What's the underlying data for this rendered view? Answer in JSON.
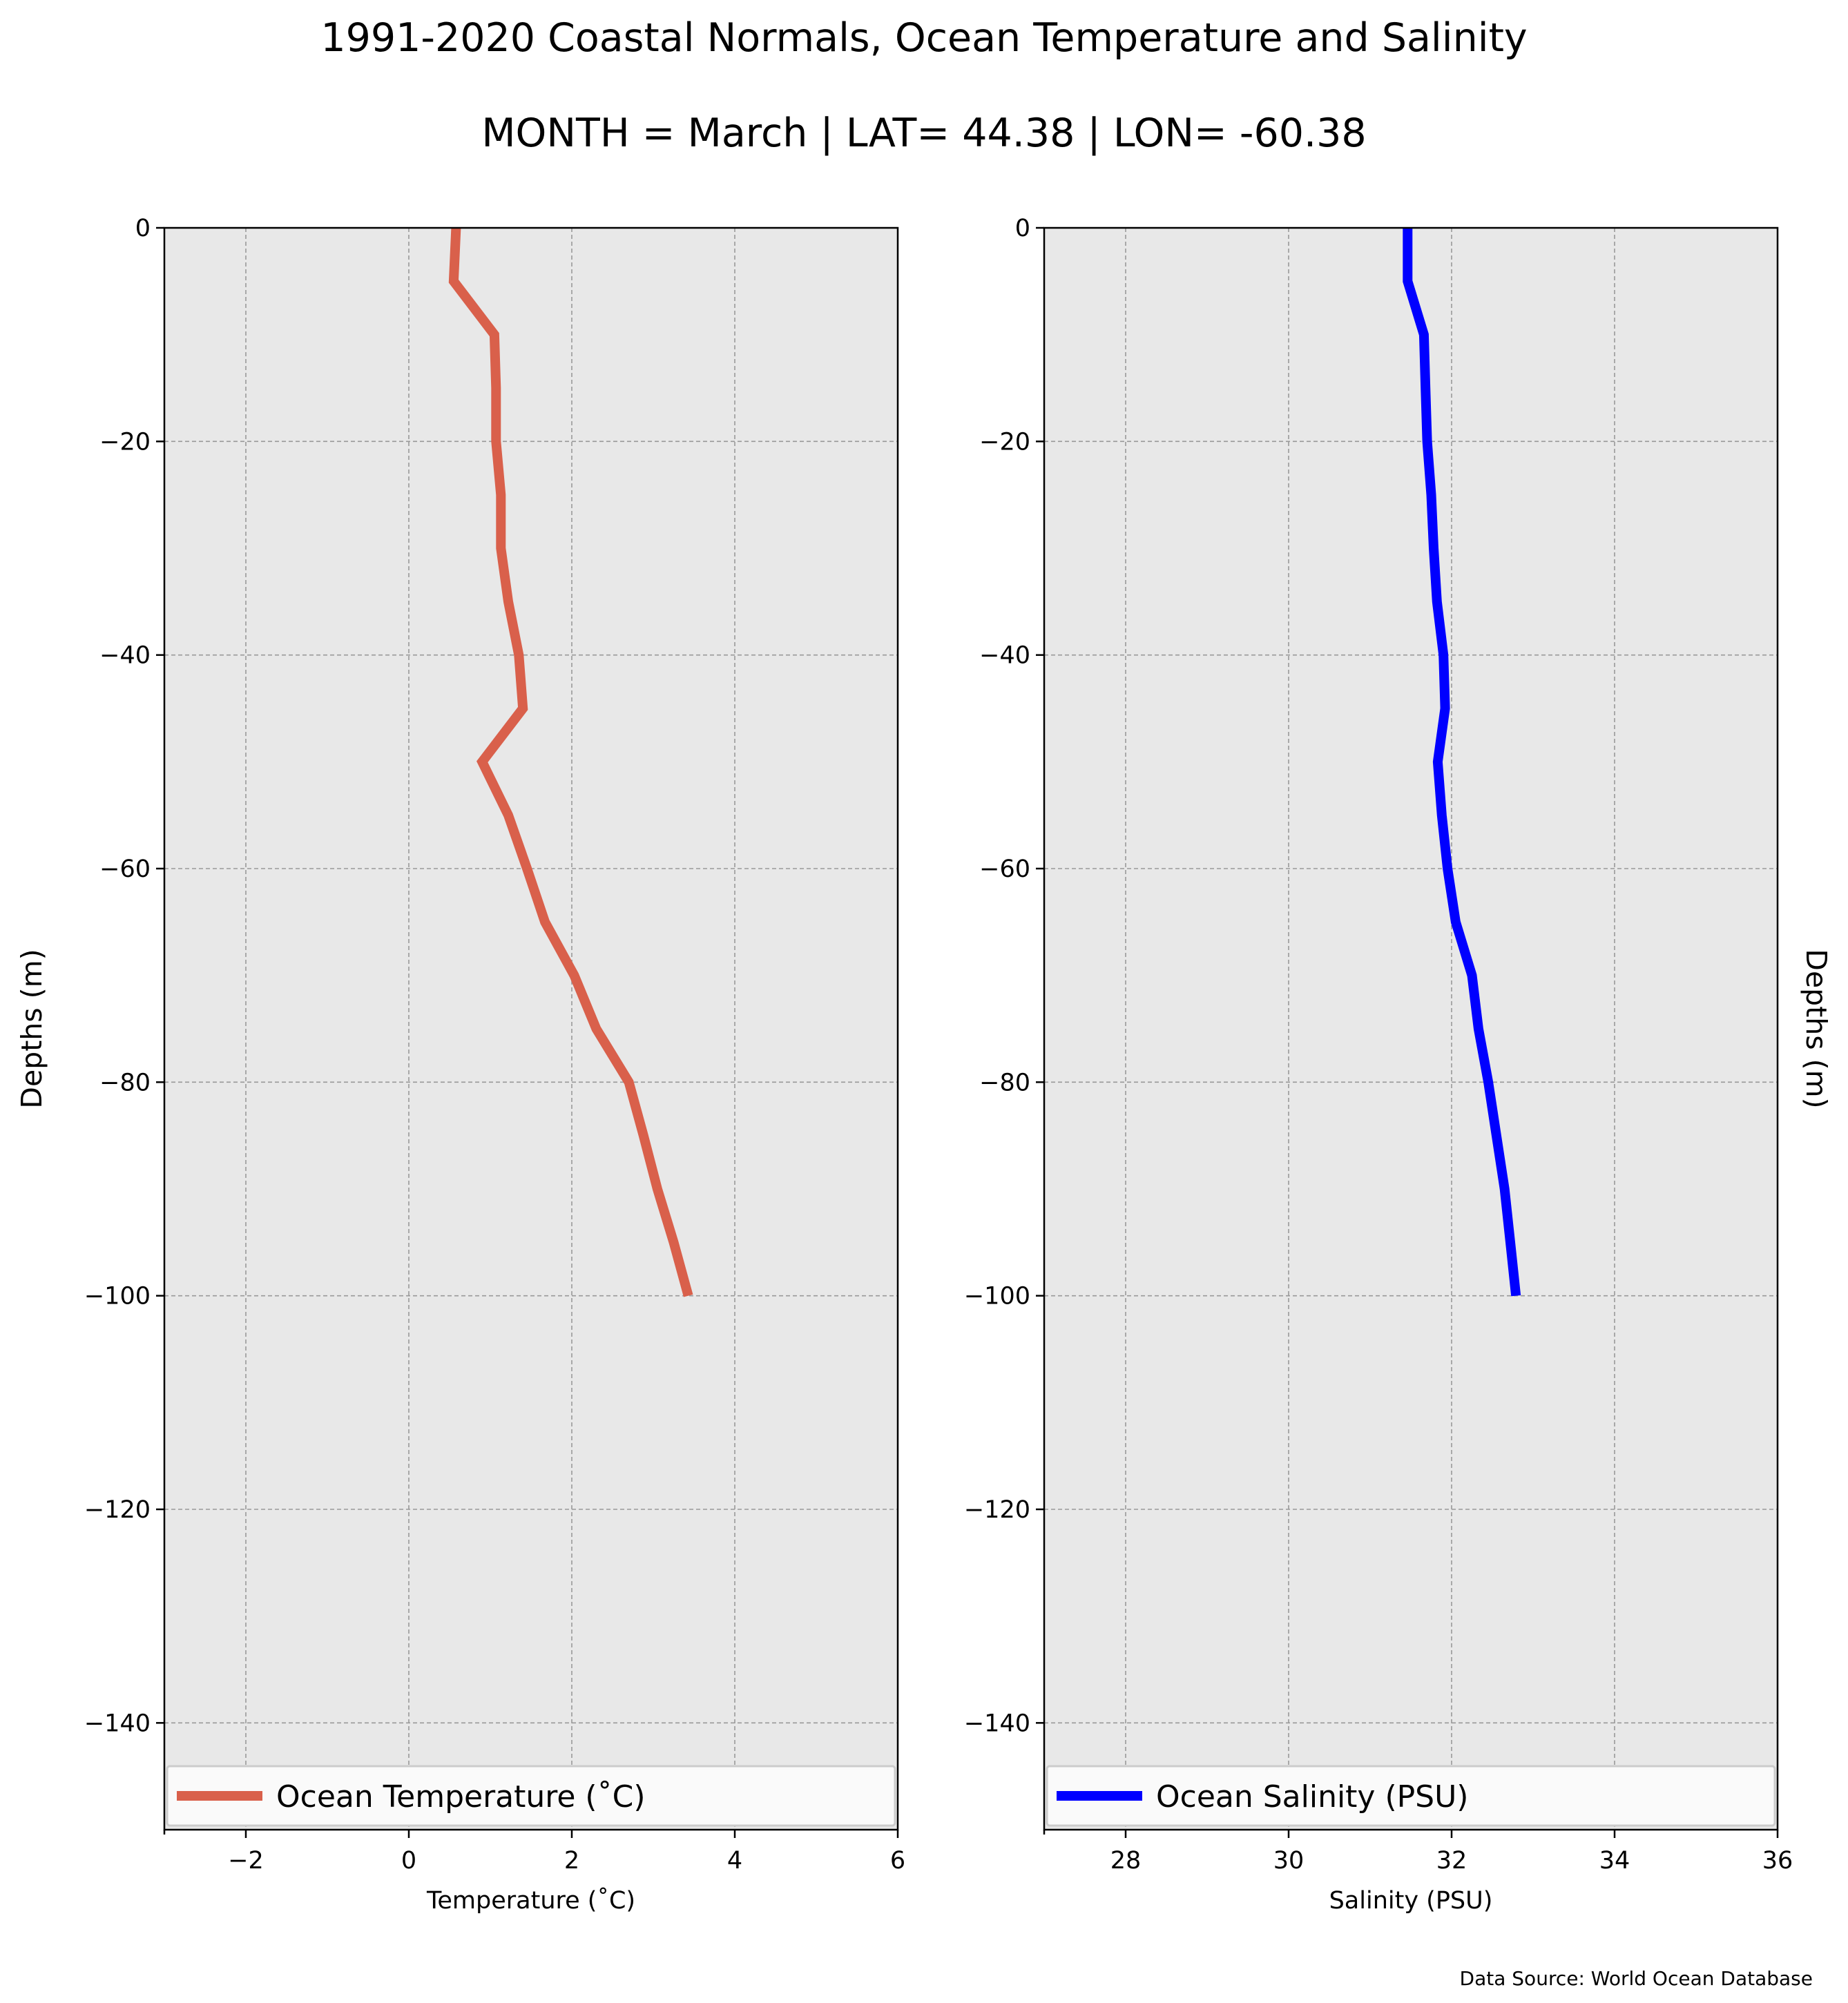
{
  "figure": {
    "title_line1": "1991-2020 Coastal Normals, Ocean Temperature and Salinity",
    "title_line2": "MONTH = March | LAT= 44.38 | LON= -60.38",
    "source": "Data Source: World Ocean Database"
  },
  "colors": {
    "background": "#ffffff",
    "plot_background": "#e8e8e8",
    "grid": "#999999",
    "temperature": "#d9604b",
    "salinity": "#0000ff"
  },
  "chart_data": [
    {
      "type": "line",
      "xlabel": "Temperature (˚C)",
      "ylabel": "Depths (m)",
      "ylabel_position": "left",
      "xlim": [
        -3,
        6
      ],
      "ylim": [
        -150,
        0
      ],
      "xticks": [
        -2,
        0,
        2,
        4,
        6
      ],
      "xtick_labels": [
        "−2",
        "0",
        "2",
        "4",
        "6"
      ],
      "yticks": [
        0,
        -20,
        -40,
        -60,
        -80,
        -100,
        -120,
        -140
      ],
      "ytick_labels": [
        "0",
        "−20",
        "−40",
        "−60",
        "−80",
        "−100",
        "−120",
        "−140"
      ],
      "grid": true,
      "legend_position": "bottom",
      "series": [
        {
          "name": "Ocean Temperature (˚C)",
          "color": "#d9604b",
          "points": [
            {
              "x": 0.58,
              "y": 0
            },
            {
              "x": 0.55,
              "y": -5
            },
            {
              "x": 1.05,
              "y": -10
            },
            {
              "x": 1.07,
              "y": -15
            },
            {
              "x": 1.07,
              "y": -20
            },
            {
              "x": 1.13,
              "y": -25
            },
            {
              "x": 1.13,
              "y": -30
            },
            {
              "x": 1.22,
              "y": -35
            },
            {
              "x": 1.35,
              "y": -40
            },
            {
              "x": 1.4,
              "y": -45
            },
            {
              "x": 0.9,
              "y": -50
            },
            {
              "x": 1.22,
              "y": -55
            },
            {
              "x": 1.45,
              "y": -60
            },
            {
              "x": 1.67,
              "y": -65
            },
            {
              "x": 2.03,
              "y": -70
            },
            {
              "x": 2.3,
              "y": -75
            },
            {
              "x": 2.7,
              "y": -80
            },
            {
              "x": 2.88,
              "y": -85
            },
            {
              "x": 3.05,
              "y": -90
            },
            {
              "x": 3.25,
              "y": -95
            },
            {
              "x": 3.43,
              "y": -100
            }
          ]
        }
      ]
    },
    {
      "type": "line",
      "xlabel": "Salinity (PSU)",
      "ylabel": "Depths (m)",
      "ylabel_position": "right",
      "xlim": [
        27,
        36
      ],
      "ylim": [
        -150,
        0
      ],
      "xticks": [
        28,
        30,
        32,
        34,
        36
      ],
      "xtick_labels": [
        "28",
        "30",
        "32",
        "34",
        "36"
      ],
      "yticks": [
        0,
        -20,
        -40,
        -60,
        -80,
        -100,
        -120,
        -140
      ],
      "ytick_labels": [
        "0",
        "−20",
        "−40",
        "−60",
        "−80",
        "−100",
        "−120",
        "−140"
      ],
      "grid": true,
      "legend_position": "bottom",
      "series": [
        {
          "name": "Ocean Salinity (PSU)",
          "color": "#0000ff",
          "points": [
            {
              "x": 31.46,
              "y": 0
            },
            {
              "x": 31.46,
              "y": -5
            },
            {
              "x": 31.66,
              "y": -10
            },
            {
              "x": 31.68,
              "y": -15
            },
            {
              "x": 31.7,
              "y": -20
            },
            {
              "x": 31.75,
              "y": -25
            },
            {
              "x": 31.78,
              "y": -30
            },
            {
              "x": 31.82,
              "y": -35
            },
            {
              "x": 31.9,
              "y": -40
            },
            {
              "x": 31.92,
              "y": -45
            },
            {
              "x": 31.83,
              "y": -50
            },
            {
              "x": 31.88,
              "y": -55
            },
            {
              "x": 31.95,
              "y": -60
            },
            {
              "x": 32.05,
              "y": -65
            },
            {
              "x": 32.25,
              "y": -70
            },
            {
              "x": 32.33,
              "y": -75
            },
            {
              "x": 32.45,
              "y": -80
            },
            {
              "x": 32.55,
              "y": -85
            },
            {
              "x": 32.65,
              "y": -90
            },
            {
              "x": 32.72,
              "y": -95
            },
            {
              "x": 32.79,
              "y": -100
            }
          ]
        }
      ]
    }
  ]
}
